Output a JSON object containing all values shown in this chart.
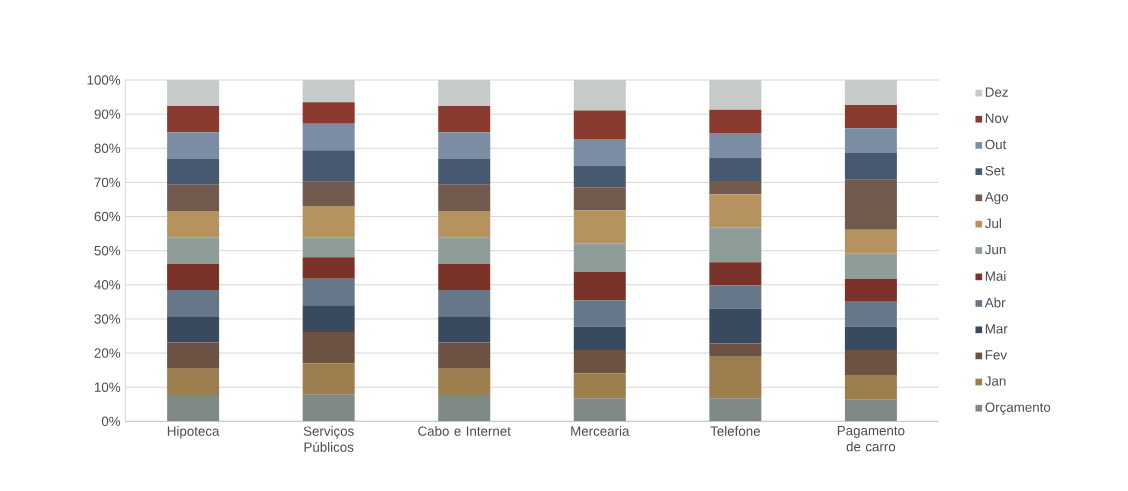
{
  "chart_data": {
    "type": "bar",
    "stacked": true,
    "categories": [
      "Hipoteca",
      "Serviços Públicos",
      "Cabo e Internet",
      "Mercearia",
      "Telefone",
      "Pagamento de carro"
    ],
    "ylim": [
      0,
      100
    ],
    "yticks": [
      {
        "value": 0,
        "label": "0%"
      },
      {
        "value": 10,
        "label": "10%"
      },
      {
        "value": 20,
        "label": "20%"
      },
      {
        "value": 30,
        "label": "30%"
      },
      {
        "value": 40,
        "label": "40%"
      },
      {
        "value": 50,
        "label": "50%"
      },
      {
        "value": 60,
        "label": "60%"
      },
      {
        "value": 70,
        "label": "70%"
      },
      {
        "value": 80,
        "label": "80%"
      },
      {
        "value": 90,
        "label": "90%"
      },
      {
        "value": 100,
        "label": "100%"
      }
    ],
    "grid": "y",
    "legend": "right",
    "series": [
      {
        "name": "Orçamento",
        "color": "#7f8a87",
        "values": [
          7.7,
          7.8,
          7.7,
          6.8,
          6.8,
          6.3
        ]
      },
      {
        "name": "Jan",
        "color": "#9c7d4e",
        "values": [
          7.7,
          9.2,
          7.7,
          7.3,
          12.1,
          7.3
        ]
      },
      {
        "name": "Fev",
        "color": "#6b5243",
        "values": [
          7.7,
          9.2,
          7.7,
          6.8,
          3.9,
          7.3
        ]
      },
      {
        "name": "Mar",
        "color": "#3a4a5e",
        "values": [
          7.7,
          7.8,
          7.7,
          6.8,
          10.2,
          6.8
        ]
      },
      {
        "name": "Abr",
        "color": "#67778a",
        "values": [
          7.7,
          7.8,
          7.7,
          7.8,
          6.8,
          7.3
        ]
      },
      {
        "name": "Mai",
        "color": "#7a3229",
        "values": [
          7.7,
          6.3,
          7.7,
          8.3,
          6.8,
          6.8
        ]
      },
      {
        "name": "Jun",
        "color": "#8e9d98",
        "values": [
          7.7,
          5.8,
          7.7,
          8.3,
          10.2,
          7.3
        ]
      },
      {
        "name": "Jul",
        "color": "#b6935e",
        "values": [
          7.7,
          9.2,
          7.7,
          9.7,
          9.7,
          7.0
        ]
      },
      {
        "name": "Ago",
        "color": "#725a4f",
        "values": [
          7.7,
          7.1,
          7.7,
          6.8,
          3.9,
          14.7
        ]
      },
      {
        "name": "Set",
        "color": "#46596f",
        "values": [
          7.7,
          9.2,
          7.7,
          6.3,
          6.8,
          7.8
        ]
      },
      {
        "name": "Out",
        "color": "#7b8da3",
        "values": [
          7.7,
          7.8,
          7.7,
          7.8,
          7.3,
          7.3
        ]
      },
      {
        "name": "Nov",
        "color": "#8a3a2e",
        "values": [
          7.7,
          6.3,
          7.7,
          8.4,
          6.8,
          6.8
        ]
      },
      {
        "name": "Dez",
        "color": "#c6cbc9",
        "values": [
          7.6,
          6.5,
          7.6,
          8.9,
          8.7,
          7.3
        ]
      }
    ]
  }
}
